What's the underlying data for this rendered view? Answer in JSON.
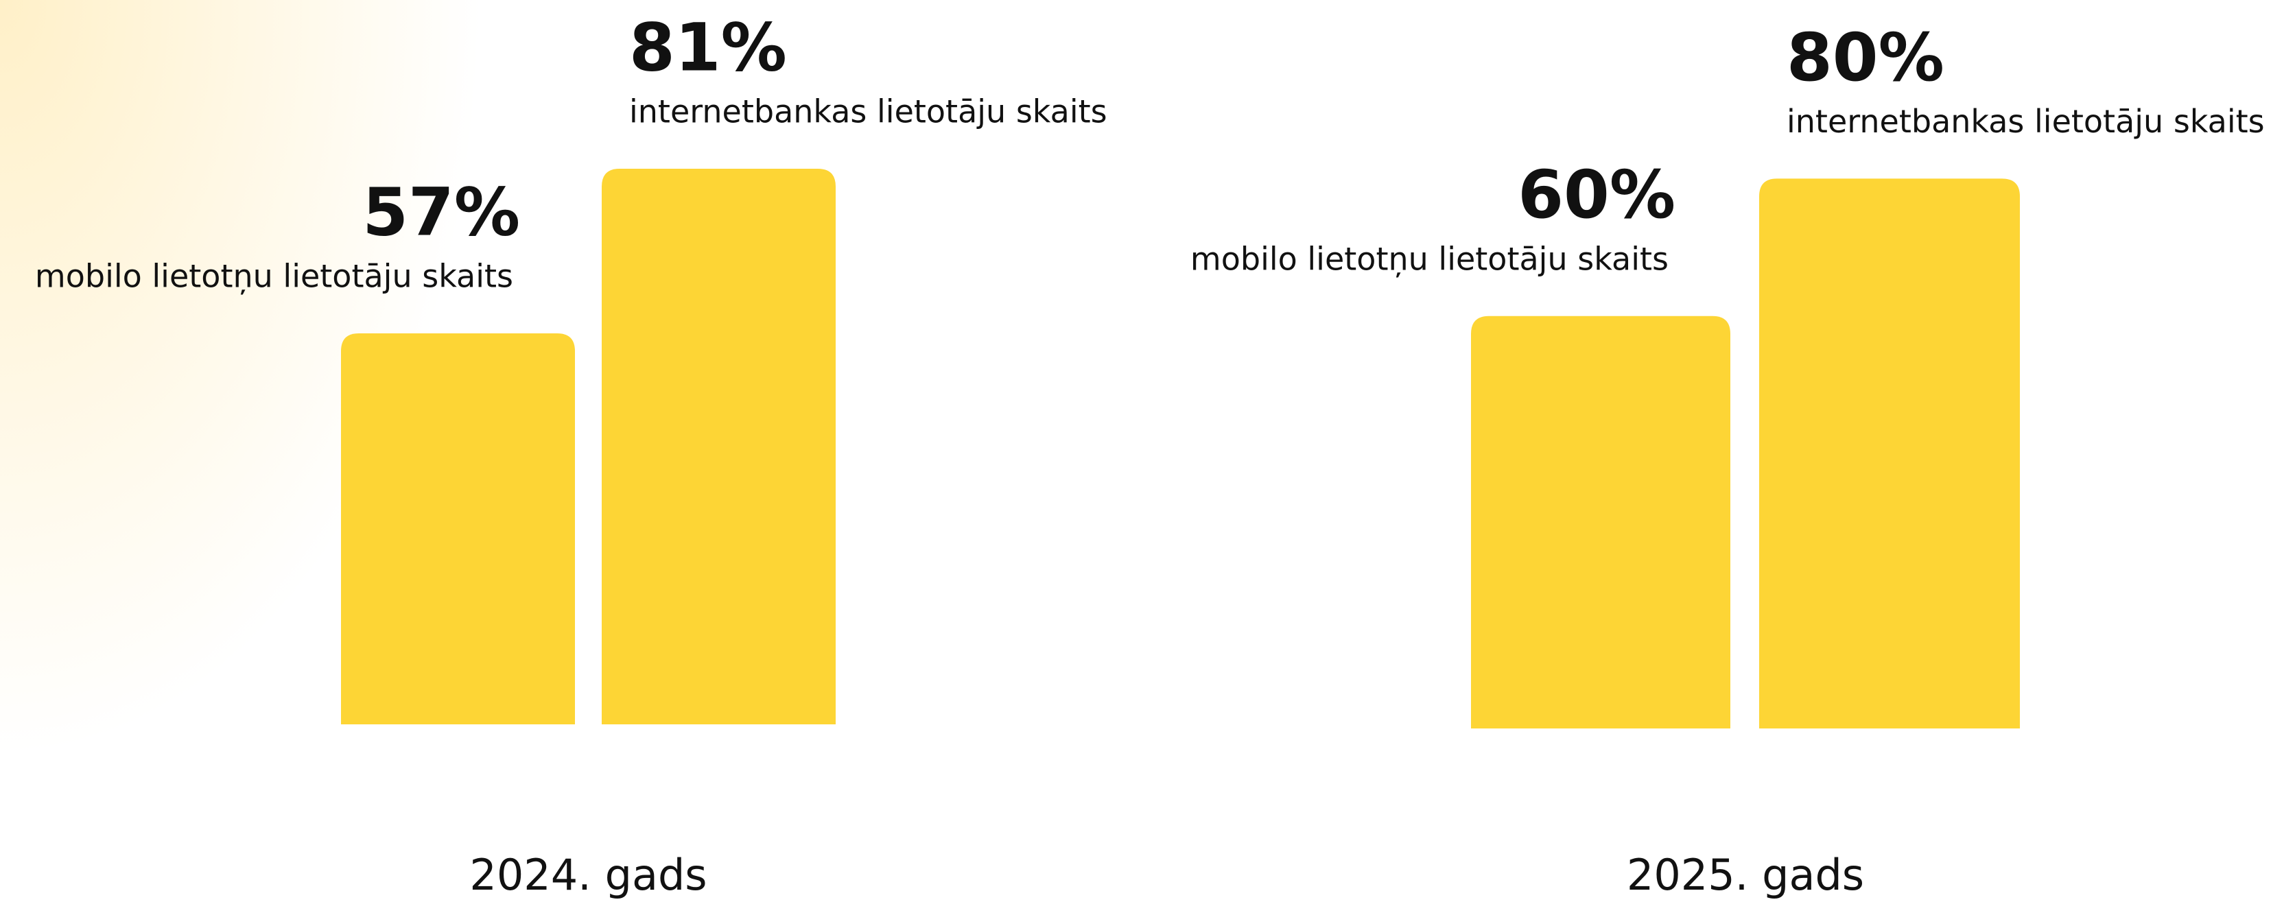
{
  "chart_data": [
    {
      "type": "bar",
      "xlabel": "2024. gads",
      "categories": [
        "mobilo lietotņu lietotāju skaits",
        "internetbankas lietotāju skaits"
      ],
      "values": [
        57,
        81
      ],
      "value_labels": [
        "57%",
        "81%"
      ],
      "color": "#fdd535",
      "ylim": [
        0,
        100
      ]
    },
    {
      "type": "bar",
      "xlabel": "2025. gads",
      "categories": [
        "mobilo lietotņu lietotāju skaits",
        "internetbankas lietotāju skaits"
      ],
      "values": [
        60,
        80
      ],
      "value_labels": [
        "60%",
        "80%"
      ],
      "color": "#fdd535",
      "ylim": [
        0,
        100
      ]
    }
  ]
}
